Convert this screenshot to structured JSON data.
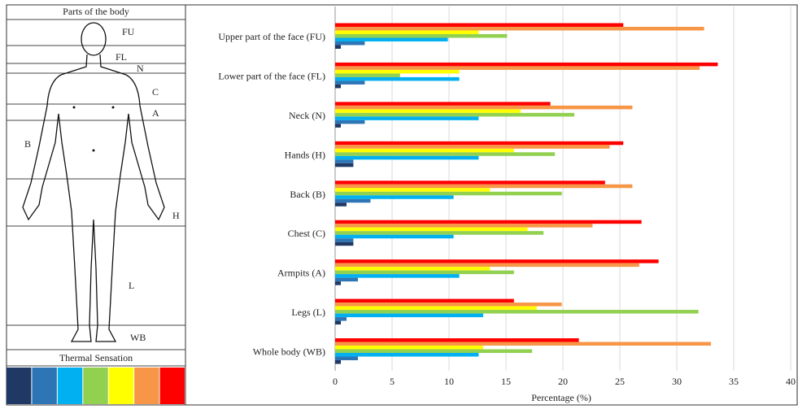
{
  "chart_data": {
    "type": "bar",
    "orientation": "horizontal",
    "categories": [
      "Upper part of the face (FU)",
      "Lower part of the face (FL)",
      "Neck (N)",
      "Hands (H)",
      "Back (B)",
      "Chest (C)",
      "Armpits (A)",
      "Legs (L)",
      "Whole body (WB)"
    ],
    "series": [
      {
        "color": "#ff0000",
        "values": [
          25.3,
          33.6,
          18.9,
          25.3,
          23.7,
          26.9,
          28.4,
          15.7,
          21.4
        ]
      },
      {
        "color": "#f79646",
        "values": [
          32.4,
          32.0,
          26.1,
          24.1,
          26.1,
          22.6,
          26.7,
          19.9,
          33.0
        ]
      },
      {
        "color": "#ffff00",
        "values": [
          12.6,
          10.9,
          16.3,
          15.7,
          13.6,
          16.9,
          13.6,
          17.7,
          13.0
        ]
      },
      {
        "color": "#92d050",
        "values": [
          15.1,
          5.7,
          21.0,
          19.3,
          19.9,
          18.3,
          15.7,
          31.9,
          17.3
        ]
      },
      {
        "color": "#00b0f0",
        "values": [
          9.9,
          10.9,
          12.6,
          12.6,
          10.4,
          10.4,
          10.9,
          13.0,
          12.6
        ]
      },
      {
        "color": "#2e75b6",
        "values": [
          2.6,
          2.6,
          2.6,
          1.6,
          3.1,
          1.6,
          2.0,
          1.0,
          2.0
        ]
      },
      {
        "color": "#1f3864",
        "values": [
          0.5,
          0.5,
          0.5,
          1.6,
          1.0,
          1.6,
          0.5,
          0.5,
          0.5
        ]
      }
    ],
    "xlabel": "Percentage (%)",
    "xlim": [
      0,
      40
    ],
    "xticks": [
      0,
      5,
      10,
      15,
      20,
      25,
      30,
      35,
      40
    ],
    "grid": true
  },
  "body_diagram": {
    "title": "Parts of the body",
    "labels": [
      "FU",
      "FL",
      "N",
      "C",
      "A",
      "B",
      "H",
      "L",
      "WB"
    ],
    "scale_title": "Thermal Sensation"
  }
}
